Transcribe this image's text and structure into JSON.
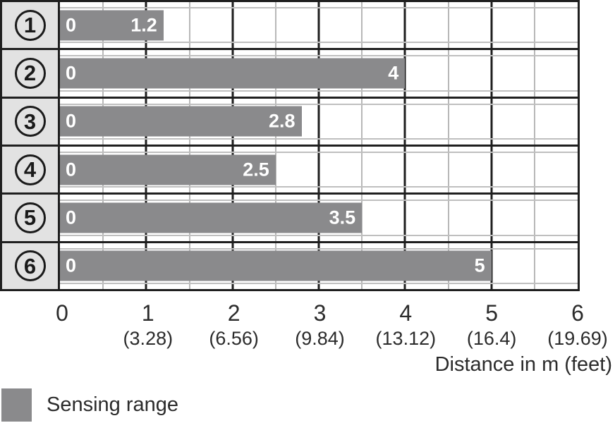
{
  "rows": [
    {
      "label": "1",
      "start": "0",
      "value": 1.2,
      "value_label": "1.2"
    },
    {
      "label": "2",
      "start": "0",
      "value": 4,
      "value_label": "4"
    },
    {
      "label": "3",
      "start": "0",
      "value": 2.8,
      "value_label": "2.8"
    },
    {
      "label": "4",
      "start": "0",
      "value": 2.5,
      "value_label": "2.5"
    },
    {
      "label": "5",
      "start": "0",
      "value": 3.5,
      "value_label": "3.5"
    },
    {
      "label": "6",
      "start": "0",
      "value": 5,
      "value_label": "5"
    }
  ],
  "axis": {
    "max_m": 6,
    "ticks": [
      {
        "m": "0",
        "feet": ""
      },
      {
        "m": "1",
        "feet": "(3.28)"
      },
      {
        "m": "2",
        "feet": "(6.56)"
      },
      {
        "m": "3",
        "feet": "(9.84)"
      },
      {
        "m": "4",
        "feet": "(13.12)"
      },
      {
        "m": "5",
        "feet": "(16.4)"
      },
      {
        "m": "6",
        "feet": "(19.69)"
      }
    ],
    "title": "Distance in m (feet)"
  },
  "legend": {
    "label": "Sensing range",
    "swatch_color": "#8a8a8c"
  },
  "colors": {
    "bar": "#8a8a8c",
    "grid_dark": "#1f1f1f",
    "grid_light": "#b8b8b8",
    "label_column_bg": "#e2e2e2",
    "text": "#2b2b2b"
  },
  "chart_data": {
    "type": "bar",
    "orientation": "horizontal",
    "title": "",
    "categories": [
      "①",
      "②",
      "③",
      "④",
      "⑤",
      "⑥"
    ],
    "values": [
      1.2,
      4,
      2.8,
      2.5,
      3.5,
      5
    ],
    "bar_start_labels": [
      "0",
      "0",
      "0",
      "0",
      "0",
      "0"
    ],
    "bar_value_labels": [
      "1.2",
      "4",
      "2.8",
      "2.5",
      "3.5",
      "5"
    ],
    "xlabel": "Distance in m (feet)",
    "ylabel": "",
    "xlim": [
      0,
      6
    ],
    "x_ticks_m": [
      0,
      1,
      2,
      3,
      4,
      5,
      6
    ],
    "x_ticks_feet": [
      "",
      "(3.28)",
      "(6.56)",
      "(9.84)",
      "(13.12)",
      "(16.4)",
      "(19.69)"
    ],
    "grid": "on",
    "grid_minor_interval_m": 0.5,
    "legend": [
      "Sensing range"
    ],
    "legend_position": "bottom-left"
  }
}
